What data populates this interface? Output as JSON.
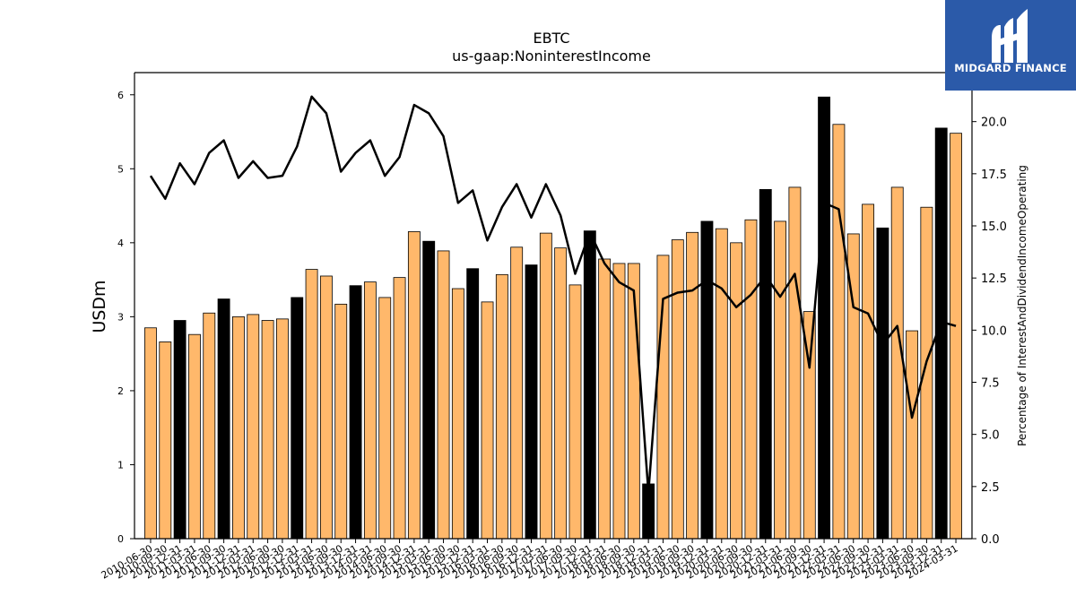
{
  "logo": {
    "text": "MIDGARD FINANCE",
    "icon": "midgard-logo-icon",
    "background": "#2b5aa9"
  },
  "colors": {
    "bar": "#ffb86b",
    "bar_highlight": "#000000",
    "bar_edge": "#000000",
    "line": "#000000"
  },
  "chart_data": {
    "type": "bar",
    "title": "EBTC",
    "subtitle": "us-gaap:NoninterestIncome",
    "ylabel": "USDm",
    "y2label": "Percentage of InterestAndDividendIncomeOperating",
    "ylim": [
      0,
      6.3
    ],
    "y2lim": [
      0,
      22.35
    ],
    "yticks": [
      "0",
      "1",
      "2",
      "3",
      "4",
      "5",
      "6"
    ],
    "y2ticks": [
      "0.0",
      "2.5",
      "5.0",
      "7.5",
      "10.0",
      "12.5",
      "15.0",
      "17.5",
      "20.0"
    ],
    "categories": [
      "2010-06-30",
      "2010-09-30",
      "2010-12-31",
      "2011-03-31",
      "2011-06-30",
      "2011-09-30",
      "2011-12-31",
      "2012-03-31",
      "2012-06-30",
      "2012-09-30",
      "2012-12-31",
      "2013-03-31",
      "2013-06-30",
      "2013-09-30",
      "2013-12-31",
      "2014-03-31",
      "2014-06-30",
      "2014-09-30",
      "2014-12-31",
      "2015-03-31",
      "2015-06-30",
      "2015-09-30",
      "2015-12-31",
      "2016-03-31",
      "2016-06-30",
      "2016-09-30",
      "2016-12-31",
      "2017-03-31",
      "2017-06-30",
      "2017-09-30",
      "2017-12-31",
      "2018-03-31",
      "2018-06-30",
      "2018-09-30",
      "2018-12-31",
      "2019-03-31",
      "2019-06-30",
      "2019-09-30",
      "2019-12-31",
      "2020-03-31",
      "2020-06-30",
      "2020-09-30",
      "2020-12-31",
      "2021-03-31",
      "2021-06-30",
      "2021-09-30",
      "2021-12-31",
      "2022-03-31",
      "2022-06-30",
      "2022-09-30",
      "2022-12-31",
      "2023-03-31",
      "2023-06-30",
      "2023-09-30",
      "2023-12-31",
      "2024-03-31"
    ],
    "xtick_labels": [
      "2010-06-30",
      "2010-09-30",
      "2010-12-31",
      "2011-03-31",
      "2011-06-30",
      "2011-09-30",
      "2011-12-31",
      "2012-03-31",
      "2012-06-30",
      "2012-09-30",
      "2012-12-31",
      "2013-03-31",
      "2013-06-30",
      "2013-09-30",
      "2013-12-31",
      "2014-03-31",
      "2014-06-30",
      "2014-09-30",
      "2014-12-31",
      "2015-03-31",
      "2015-06-30",
      "2015-09-30",
      "2015-12-31",
      "2016-03-31",
      "2016-06-30",
      "2016-09-30",
      "2016-12-31",
      "2017-03-31",
      "2017-06-30",
      "2017-09-30",
      "2017-12-31",
      "2018-03-31",
      "2018-06-30",
      "2018-09-30",
      "2018-12-31",
      "2019-03-31",
      "2019-06-30",
      "2019-09-30",
      "2019-12-31",
      "2020-03-31",
      "2020-06-30",
      "2020-09-30",
      "2020-12-31",
      "2021-03-31",
      "2021-06-30",
      "2021-09-30",
      "2021-12-31",
      "2022-03-31",
      "2022-06-30",
      "2022-09-30",
      "2022-12-31",
      "2023-03-31",
      "2023-06-30",
      "2023-09-30",
      "2023-12-31",
      "2024-03-31"
    ],
    "highlight": [
      2,
      5,
      10,
      14,
      19,
      22,
      26,
      30,
      34,
      38,
      42,
      46,
      50,
      54
    ],
    "series": [
      {
        "type": "bar",
        "axis": "left",
        "values": [
          2.85,
          2.66,
          2.95,
          2.76,
          3.05,
          3.24,
          3.0,
          3.03,
          2.95,
          2.97,
          3.26,
          3.64,
          3.55,
          3.17,
          3.42,
          3.47,
          3.26,
          3.53,
          4.15,
          4.02,
          3.89,
          3.38,
          3.65,
          3.2,
          3.57,
          3.94,
          3.7,
          4.13,
          3.93,
          3.43,
          4.16,
          3.78,
          3.72,
          3.72,
          0.74,
          3.83,
          4.04,
          4.14,
          4.29,
          4.19,
          4.0,
          4.31,
          4.72,
          4.29,
          4.75,
          3.07,
          5.97,
          5.6,
          4.12,
          4.52,
          4.2,
          4.75,
          2.81,
          4.48,
          5.55,
          5.48
        ]
      },
      {
        "type": "line",
        "axis": "right",
        "values": [
          17.4,
          16.3,
          18.0,
          17.0,
          18.5,
          19.1,
          17.3,
          18.1,
          17.3,
          17.4,
          18.8,
          21.2,
          20.4,
          17.6,
          18.5,
          19.1,
          17.4,
          18.3,
          20.8,
          20.4,
          19.3,
          16.1,
          16.7,
          14.3,
          15.9,
          17.0,
          15.4,
          17.0,
          15.5,
          12.7,
          14.7,
          13.2,
          12.3,
          11.9,
          2.2,
          11.5,
          11.8,
          11.9,
          12.4,
          12.0,
          11.1,
          11.7,
          12.6,
          11.6,
          12.7,
          8.2,
          16.1,
          15.8,
          11.1,
          10.8,
          9.3,
          10.2,
          5.8,
          8.5,
          10.4,
          10.2
        ]
      }
    ]
  }
}
